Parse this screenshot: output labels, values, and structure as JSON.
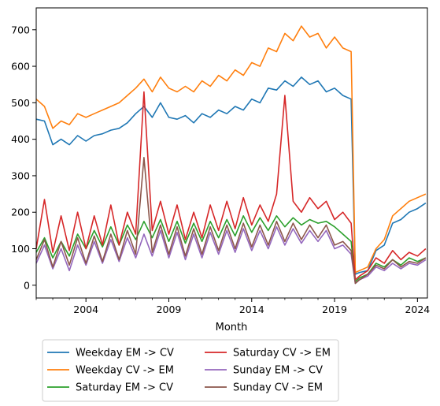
{
  "chart_data": {
    "type": "line",
    "xlabel": "Month",
    "ylabel": "",
    "xlim": [
      2001.0,
      2024.6
    ],
    "ylim": [
      -35,
      760
    ],
    "x_ticks": [
      2004,
      2009,
      2014,
      2019,
      2024
    ],
    "x_tick_labels": [
      "2004",
      "2009",
      "2014",
      "2019",
      "2024"
    ],
    "y_ticks": [
      0,
      100,
      200,
      300,
      400,
      500,
      600,
      700
    ],
    "y_tick_labels": [
      "0",
      "100",
      "200",
      "300",
      "400",
      "500",
      "600",
      "700"
    ],
    "grid": false,
    "legend_placement": "below plot, two columns",
    "legend_columns": 2,
    "x_note": "approximate values sampled every ~6 months (decimal year)",
    "series": [
      {
        "name": "Weekday EM -> CV",
        "color": "#1f77b4",
        "x": [
          2001.0,
          2001.5,
          2002.0,
          2002.5,
          2003.0,
          2003.5,
          2004.0,
          2004.5,
          2005.0,
          2005.5,
          2006.0,
          2006.5,
          2007.0,
          2007.5,
          2008.0,
          2008.5,
          2009.0,
          2009.5,
          2010.0,
          2010.5,
          2011.0,
          2011.5,
          2012.0,
          2012.5,
          2013.0,
          2013.5,
          2014.0,
          2014.5,
          2015.0,
          2015.5,
          2016.0,
          2016.5,
          2017.0,
          2017.5,
          2018.0,
          2018.5,
          2019.0,
          2019.5,
          2020.0,
          2020.25,
          2020.5,
          2021.0,
          2021.5,
          2022.0,
          2022.5,
          2023.0,
          2023.5,
          2024.0,
          2024.5
        ],
        "values": [
          455,
          450,
          385,
          400,
          385,
          410,
          395,
          410,
          415,
          425,
          430,
          445,
          470,
          490,
          460,
          500,
          460,
          455,
          465,
          445,
          470,
          460,
          480,
          470,
          490,
          480,
          510,
          500,
          540,
          535,
          560,
          545,
          570,
          550,
          560,
          530,
          540,
          520,
          510,
          30,
          35,
          40,
          95,
          110,
          170,
          180,
          200,
          210,
          225
        ]
      },
      {
        "name": "Weekday CV -> EM",
        "color": "#ff7f0e",
        "x": [
          2001.0,
          2001.5,
          2002.0,
          2002.5,
          2003.0,
          2003.5,
          2004.0,
          2004.5,
          2005.0,
          2005.5,
          2006.0,
          2006.5,
          2007.0,
          2007.5,
          2008.0,
          2008.5,
          2009.0,
          2009.5,
          2010.0,
          2010.5,
          2011.0,
          2011.5,
          2012.0,
          2012.5,
          2013.0,
          2013.5,
          2014.0,
          2014.5,
          2015.0,
          2015.5,
          2016.0,
          2016.5,
          2017.0,
          2017.5,
          2018.0,
          2018.5,
          2019.0,
          2019.5,
          2020.0,
          2020.25,
          2020.5,
          2021.0,
          2021.5,
          2022.0,
          2022.5,
          2023.0,
          2023.5,
          2024.0,
          2024.5
        ],
        "values": [
          510,
          490,
          430,
          450,
          440,
          470,
          460,
          470,
          480,
          490,
          500,
          520,
          540,
          565,
          530,
          570,
          540,
          530,
          545,
          530,
          560,
          545,
          575,
          560,
          590,
          575,
          610,
          600,
          650,
          640,
          690,
          670,
          710,
          680,
          690,
          650,
          680,
          650,
          640,
          35,
          40,
          50,
          100,
          125,
          190,
          210,
          230,
          240,
          250
        ]
      },
      {
        "name": "Saturday EM -> CV",
        "color": "#2ca02c",
        "x": [
          2001.0,
          2001.5,
          2002.0,
          2002.5,
          2003.0,
          2003.5,
          2004.0,
          2004.5,
          2005.0,
          2005.5,
          2006.0,
          2006.5,
          2007.0,
          2007.5,
          2008.0,
          2008.5,
          2009.0,
          2009.5,
          2010.0,
          2010.5,
          2011.0,
          2011.5,
          2012.0,
          2012.5,
          2013.0,
          2013.5,
          2014.0,
          2014.5,
          2015.0,
          2015.5,
          2016.0,
          2016.5,
          2017.0,
          2017.5,
          2018.0,
          2018.5,
          2019.0,
          2019.5,
          2020.0,
          2020.25,
          2020.5,
          2021.0,
          2021.5,
          2022.0,
          2022.5,
          2023.0,
          2023.5,
          2024.0,
          2024.5
        ],
        "values": [
          90,
          130,
          75,
          120,
          80,
          140,
          100,
          150,
          105,
          160,
          110,
          165,
          125,
          175,
          130,
          180,
          120,
          175,
          115,
          170,
          120,
          175,
          130,
          180,
          135,
          190,
          145,
          185,
          150,
          190,
          160,
          185,
          165,
          180,
          170,
          175,
          160,
          140,
          120,
          10,
          20,
          30,
          60,
          50,
          70,
          55,
          75,
          65,
          75
        ]
      },
      {
        "name": "Saturday CV -> EM",
        "color": "#d62728",
        "x": [
          2001.0,
          2001.5,
          2002.0,
          2002.5,
          2003.0,
          2003.5,
          2004.0,
          2004.5,
          2005.0,
          2005.5,
          2006.0,
          2006.5,
          2007.0,
          2007.5,
          2008.0,
          2008.5,
          2009.0,
          2009.5,
          2010.0,
          2010.5,
          2011.0,
          2011.5,
          2012.0,
          2012.5,
          2013.0,
          2013.5,
          2014.0,
          2014.5,
          2015.0,
          2015.5,
          2016.0,
          2016.5,
          2017.0,
          2017.5,
          2018.0,
          2018.5,
          2019.0,
          2019.5,
          2020.0,
          2020.25,
          2020.5,
          2021.0,
          2021.5,
          2022.0,
          2022.5,
          2023.0,
          2023.5,
          2024.0,
          2024.5
        ],
        "values": [
          100,
          235,
          90,
          190,
          95,
          200,
          100,
          190,
          110,
          220,
          110,
          200,
          140,
          530,
          150,
          230,
          140,
          220,
          125,
          200,
          130,
          220,
          150,
          230,
          155,
          240,
          165,
          220,
          175,
          250,
          520,
          230,
          200,
          240,
          210,
          230,
          180,
          200,
          170,
          15,
          25,
          40,
          75,
          60,
          95,
          70,
          90,
          80,
          100
        ]
      },
      {
        "name": "Sunday EM -> CV",
        "color": "#9467bd",
        "x": [
          2001.0,
          2001.5,
          2002.0,
          2002.5,
          2003.0,
          2003.5,
          2004.0,
          2004.5,
          2005.0,
          2005.5,
          2006.0,
          2006.5,
          2007.0,
          2007.5,
          2008.0,
          2008.5,
          2009.0,
          2009.5,
          2010.0,
          2010.5,
          2011.0,
          2011.5,
          2012.0,
          2012.5,
          2013.0,
          2013.5,
          2014.0,
          2014.5,
          2015.0,
          2015.5,
          2016.0,
          2016.5,
          2017.0,
          2017.5,
          2018.0,
          2018.5,
          2019.0,
          2019.5,
          2020.0,
          2020.25,
          2020.5,
          2021.0,
          2021.5,
          2022.0,
          2022.5,
          2023.0,
          2023.5,
          2024.0,
          2024.5
        ],
        "values": [
          60,
          110,
          45,
          100,
          40,
          110,
          55,
          120,
          60,
          125,
          65,
          130,
          75,
          140,
          80,
          150,
          75,
          145,
          70,
          140,
          75,
          145,
          85,
          150,
          90,
          155,
          95,
          150,
          100,
          160,
          110,
          155,
          115,
          150,
          120,
          150,
          100,
          110,
          85,
          5,
          15,
          25,
          50,
          40,
          60,
          45,
          60,
          55,
          70
        ]
      },
      {
        "name": "Sunday CV -> EM",
        "color": "#8c564b",
        "x": [
          2001.0,
          2001.5,
          2002.0,
          2002.5,
          2003.0,
          2003.5,
          2004.0,
          2004.5,
          2005.0,
          2005.5,
          2006.0,
          2006.5,
          2007.0,
          2007.5,
          2008.0,
          2008.5,
          2009.0,
          2009.5,
          2010.0,
          2010.5,
          2011.0,
          2011.5,
          2012.0,
          2012.5,
          2013.0,
          2013.5,
          2014.0,
          2014.5,
          2015.0,
          2015.5,
          2016.0,
          2016.5,
          2017.0,
          2017.5,
          2018.0,
          2018.5,
          2019.0,
          2019.5,
          2020.0,
          2020.25,
          2020.5,
          2021.0,
          2021.5,
          2022.0,
          2022.5,
          2023.0,
          2023.5,
          2024.0,
          2024.5
        ],
        "values": [
          70,
          125,
          50,
          120,
          55,
          130,
          60,
          135,
          65,
          140,
          70,
          150,
          85,
          350,
          90,
          165,
          85,
          160,
          80,
          155,
          85,
          160,
          95,
          165,
          100,
          170,
          105,
          165,
          110,
          175,
          120,
          170,
          125,
          165,
          130,
          165,
          110,
          120,
          95,
          5,
          15,
          30,
          55,
          45,
          70,
          50,
          65,
          60,
          75
        ]
      }
    ]
  }
}
